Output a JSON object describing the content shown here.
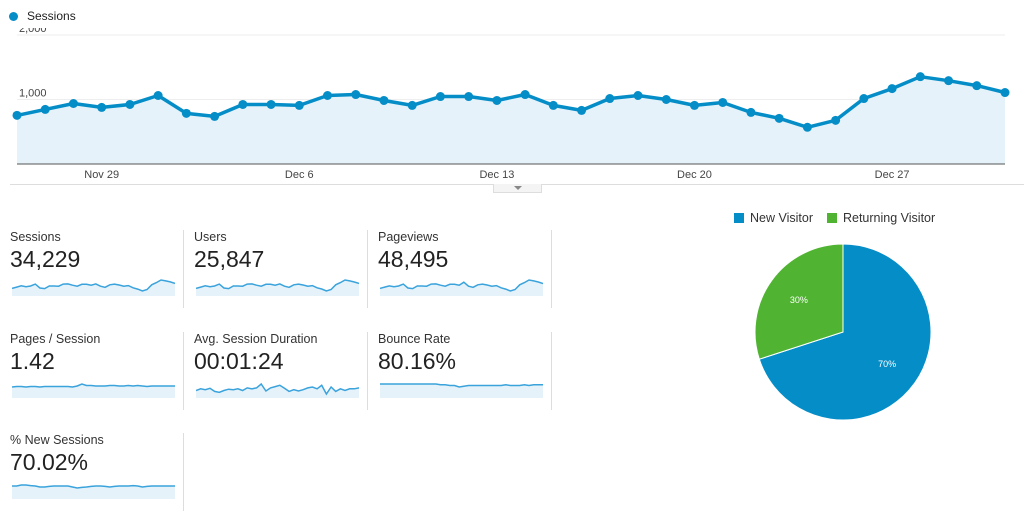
{
  "legend": {
    "label": "Sessions",
    "color": "#058dc7"
  },
  "chart_data": [
    {
      "type": "area",
      "series": [
        {
          "name": "Sessions",
          "values": [
            754,
            846,
            938,
            877,
            923,
            1062,
            785,
            738,
            923,
            923,
            908,
            1062,
            1077,
            985,
            908,
            1046,
            1046,
            985,
            1077,
            908,
            831,
            1015,
            1062,
            1000,
            908,
            954,
            800,
            708,
            569,
            677,
            1015,
            1169,
            1354,
            1292,
            1215,
            1108
          ]
        }
      ],
      "x_start": "Nov 26",
      "x_end": "Dec 31",
      "x_tick_labels": [
        "Nov 29",
        "Dec 6",
        "Dec 13",
        "Dec 20",
        "Dec 27"
      ],
      "x_tick_indices": [
        3,
        10,
        17,
        24,
        31
      ],
      "y_tick_labels": [
        "2,000",
        "1,000"
      ],
      "y_ticks": [
        2000,
        1000
      ],
      "ylim": [
        0,
        2000
      ],
      "grid": true,
      "legend": "top-left",
      "color": "#058dc7",
      "fill": "#e5f2f9"
    },
    {
      "type": "pie",
      "legend": "top",
      "slices": [
        {
          "label": "New Visitor",
          "value": 70,
          "data_label": "70%",
          "color": "#058dc7"
        },
        {
          "label": "Returning Visitor",
          "value": 30,
          "data_label": "30%",
          "color": "#50b432"
        }
      ]
    }
  ],
  "metrics": [
    {
      "label": "Sessions",
      "value": "34,229",
      "spark": [
        754,
        846,
        938,
        877,
        923,
        1062,
        785,
        738,
        923,
        923,
        908,
        1062,
        1077,
        985,
        908,
        1046,
        1046,
        985,
        1077,
        908,
        831,
        1015,
        1062,
        1000,
        908,
        954,
        800,
        708,
        569,
        677,
        1015,
        1169,
        1354,
        1292,
        1215,
        1108
      ]
    },
    {
      "label": "Users",
      "value": "25,847",
      "spark": [
        570,
        640,
        708,
        662,
        697,
        802,
        593,
        557,
        697,
        697,
        686,
        802,
        813,
        744,
        686,
        790,
        790,
        744,
        813,
        686,
        627,
        766,
        802,
        755,
        686,
        720,
        604,
        535,
        430,
        511,
        766,
        883,
        1022,
        976,
        917,
        837
      ]
    },
    {
      "label": "Pageviews",
      "value": "48,495",
      "spark": [
        1070,
        1200,
        1330,
        1245,
        1310,
        1508,
        1115,
        1048,
        1310,
        1310,
        1290,
        1508,
        1529,
        1400,
        1290,
        1485,
        1485,
        1400,
        1700,
        1290,
        1180,
        1441,
        1508,
        1420,
        1290,
        1355,
        1136,
        1005,
        808,
        961,
        1441,
        1660,
        1923,
        1835,
        1725,
        1573
      ]
    },
    {
      "label": "Pages / Session",
      "value": "1.42",
      "spark": [
        1.4,
        1.41,
        1.41,
        1.4,
        1.41,
        1.41,
        1.4,
        1.41,
        1.41,
        1.41,
        1.41,
        1.41,
        1.41,
        1.4,
        1.42,
        1.46,
        1.43,
        1.43,
        1.42,
        1.42,
        1.42,
        1.43,
        1.43,
        1.42,
        1.42,
        1.43,
        1.42,
        1.43,
        1.42,
        1.41,
        1.42,
        1.42,
        1.42,
        1.42,
        1.42,
        1.42
      ]
    },
    {
      "label": "Avg. Session Duration",
      "value": "00:01:24",
      "spark": [
        80,
        84,
        82,
        85,
        78,
        76,
        80,
        83,
        82,
        84,
        80,
        86,
        84,
        86,
        95,
        79,
        86,
        89,
        92,
        85,
        78,
        82,
        79,
        82,
        86,
        88,
        84,
        92,
        72,
        88,
        78,
        84,
        80,
        84,
        84,
        86
      ]
    },
    {
      "label": "Bounce Rate",
      "value": "80.16%",
      "spark": [
        81,
        81,
        81,
        81,
        81,
        81,
        81,
        81,
        81,
        81,
        81,
        81,
        81,
        80.5,
        80.5,
        80,
        80,
        79,
        79.5,
        80,
        80,
        80,
        80,
        80,
        80,
        80,
        80,
        80.5,
        80,
        80,
        80,
        80.5,
        80,
        80.5,
        80.5,
        80.5
      ]
    },
    {
      "label": "% New Sessions",
      "value": "70.02%",
      "spark": [
        70,
        70,
        70.5,
        70.5,
        70.2,
        70,
        69.5,
        69.5,
        69.8,
        70,
        70,
        70,
        70,
        69.5,
        69,
        69.3,
        69.5,
        69.8,
        70,
        70,
        69.8,
        69.5,
        69.8,
        70,
        70,
        70,
        70.2,
        70,
        69.5,
        69.8,
        70,
        70,
        70,
        70,
        70,
        70
      ]
    }
  ]
}
